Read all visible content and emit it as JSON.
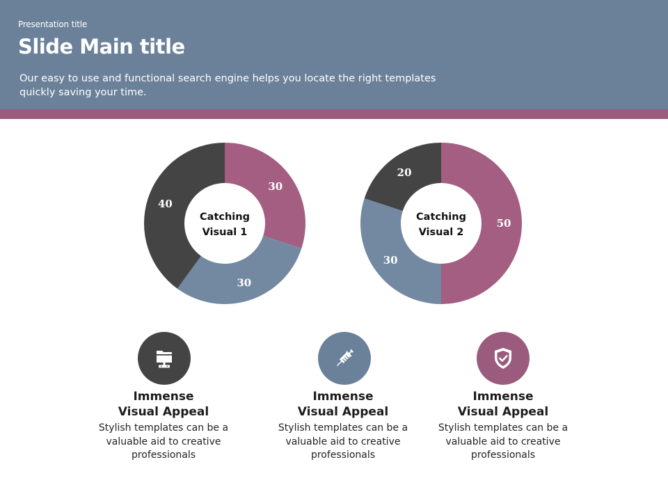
{
  "header": {
    "presentation_title": "Presentation title",
    "main_title": "Slide Main title",
    "subtitle_line1": "Our easy to use and functional search engine helps you locate the right templates",
    "subtitle_line2": "quickly saving your time."
  },
  "colors": {
    "header_bg": "#6b8199",
    "accent_bar": "#9a5b7c",
    "dark": "#444444",
    "slate": "#7389a1",
    "mauve": "#a35e82"
  },
  "chart_data": [
    {
      "type": "pie",
      "center_label": [
        "Catching",
        "Visual 1"
      ],
      "slices": [
        {
          "value": 30,
          "color": "#a35e82",
          "label": "30"
        },
        {
          "value": 30,
          "color": "#7389a1",
          "label": "30"
        },
        {
          "value": 40,
          "color": "#444444",
          "label": "40"
        }
      ]
    },
    {
      "type": "pie",
      "center_label": [
        "Catching",
        "Visual 2"
      ],
      "slices": [
        {
          "value": 50,
          "color": "#a35e82",
          "label": "50"
        },
        {
          "value": 30,
          "color": "#7389a1",
          "label": "30"
        },
        {
          "value": 20,
          "color": "#444444",
          "label": "20"
        }
      ]
    }
  ],
  "features": [
    {
      "icon": "monitor-icon",
      "color": "#444444",
      "title_line1": "Immense",
      "title_line2": "Visual Appeal",
      "desc_line1": "Stylish templates can be a",
      "desc_line2": "valuable aid to creative",
      "desc_line3": "professionals"
    },
    {
      "icon": "syringe-icon",
      "color": "#6b8199",
      "title_line1": "Immense",
      "title_line2": "Visual Appeal",
      "desc_line1": "Stylish templates can be a",
      "desc_line2": "valuable aid to creative",
      "desc_line3": "professionals"
    },
    {
      "icon": "shield-check-icon",
      "color": "#9a5b7c",
      "title_line1": "Immense",
      "title_line2": "Visual Appeal",
      "desc_line1": "Stylish templates can be a",
      "desc_line2": "valuable aid to creative",
      "desc_line3": "professionals"
    }
  ]
}
